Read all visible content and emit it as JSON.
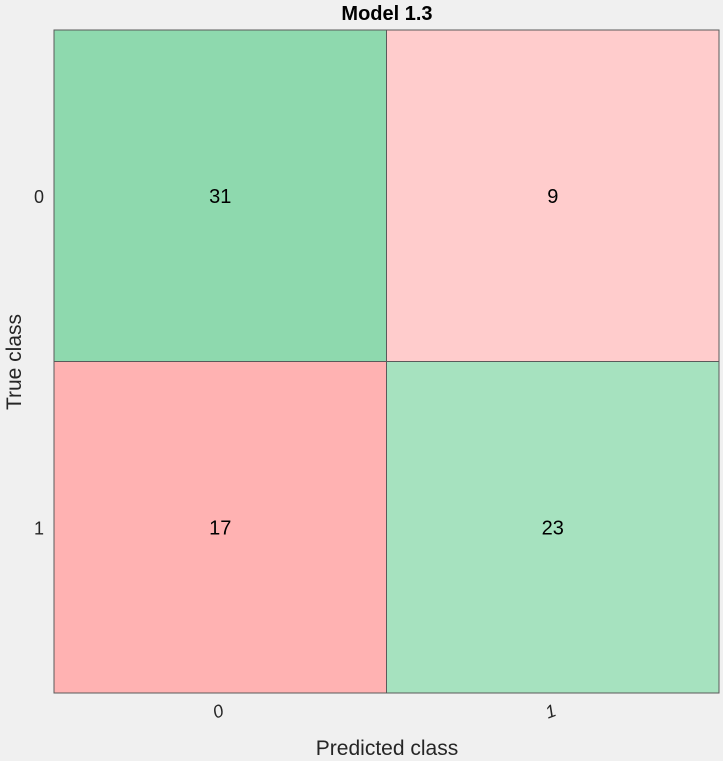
{
  "chart_data": {
    "type": "heatmap",
    "subtype": "confusion-matrix",
    "title": "Model 1.3",
    "xlabel": "Predicted class",
    "ylabel": "True class",
    "x_categories": [
      "0",
      "1"
    ],
    "y_categories": [
      "0",
      "1"
    ],
    "values": [
      [
        31,
        9
      ],
      [
        17,
        23
      ]
    ],
    "colors": {
      "background": "#f0f0f0",
      "correct_strong": "#8ed9ae",
      "correct_light": "#a6e2bf",
      "incorrect_strong": "#ffb2b2",
      "incorrect_light": "#ffcccc",
      "grid_line": "#5a5a5a",
      "text": "#000000"
    },
    "grid": true,
    "legend": "none"
  }
}
